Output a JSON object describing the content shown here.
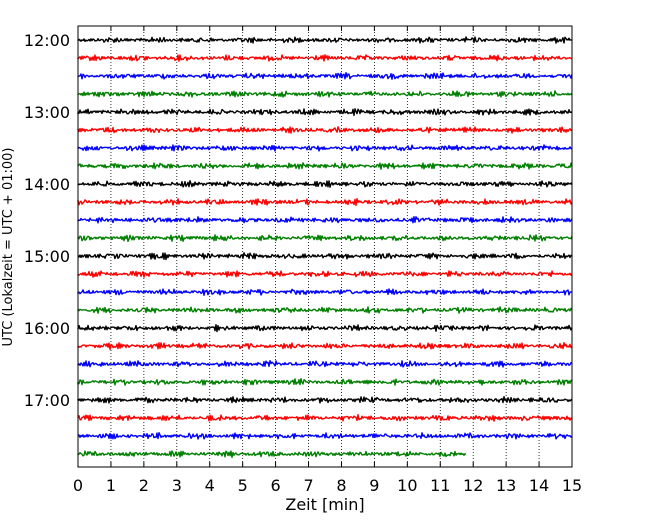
{
  "chart_data": {
    "type": "line",
    "title": "",
    "xlabel": "Zeit  [min]",
    "ylabel": "UTC (Lokalzeit = UTC + 01:00)",
    "xlim": [
      0,
      15
    ],
    "x_ticks": [
      "0",
      "1",
      "2",
      "3",
      "4",
      "5",
      "6",
      "7",
      "8",
      "9",
      "10",
      "11",
      "12",
      "13",
      "14",
      "15"
    ],
    "y_tick_labels": [
      "12:00",
      "13:00",
      "14:00",
      "15:00",
      "16:00",
      "17:00"
    ],
    "grid": "x-dotted",
    "legend": "none",
    "trace_minutes": 15,
    "traces_per_hour": 4,
    "last_trace_end_min": 11.8,
    "colors": [
      "#000000",
      "#ff0000",
      "#0000ff",
      "#008000"
    ],
    "series": [
      {
        "start": "12:00",
        "color": "#000000",
        "end_min": 15
      },
      {
        "start": "12:15",
        "color": "#ff0000",
        "end_min": 15
      },
      {
        "start": "12:30",
        "color": "#0000ff",
        "end_min": 15
      },
      {
        "start": "12:45",
        "color": "#008000",
        "end_min": 15
      },
      {
        "start": "13:00",
        "color": "#000000",
        "end_min": 15
      },
      {
        "start": "13:15",
        "color": "#ff0000",
        "end_min": 15
      },
      {
        "start": "13:30",
        "color": "#0000ff",
        "end_min": 15
      },
      {
        "start": "13:45",
        "color": "#008000",
        "end_min": 15
      },
      {
        "start": "14:00",
        "color": "#000000",
        "end_min": 15
      },
      {
        "start": "14:15",
        "color": "#ff0000",
        "end_min": 15
      },
      {
        "start": "14:30",
        "color": "#0000ff",
        "end_min": 15
      },
      {
        "start": "14:45",
        "color": "#008000",
        "end_min": 15
      },
      {
        "start": "15:00",
        "color": "#000000",
        "end_min": 15
      },
      {
        "start": "15:15",
        "color": "#ff0000",
        "end_min": 15
      },
      {
        "start": "15:30",
        "color": "#0000ff",
        "end_min": 15
      },
      {
        "start": "15:45",
        "color": "#008000",
        "end_min": 15
      },
      {
        "start": "16:00",
        "color": "#000000",
        "end_min": 15
      },
      {
        "start": "16:15",
        "color": "#ff0000",
        "end_min": 15
      },
      {
        "start": "16:30",
        "color": "#0000ff",
        "end_min": 15
      },
      {
        "start": "16:45",
        "color": "#008000",
        "end_min": 15
      },
      {
        "start": "17:00",
        "color": "#000000",
        "end_min": 15
      },
      {
        "start": "17:15",
        "color": "#ff0000",
        "end_min": 15
      },
      {
        "start": "17:30",
        "color": "#0000ff",
        "end_min": 15
      },
      {
        "start": "17:45",
        "color": "#008000",
        "end_min": 11.8
      }
    ]
  }
}
